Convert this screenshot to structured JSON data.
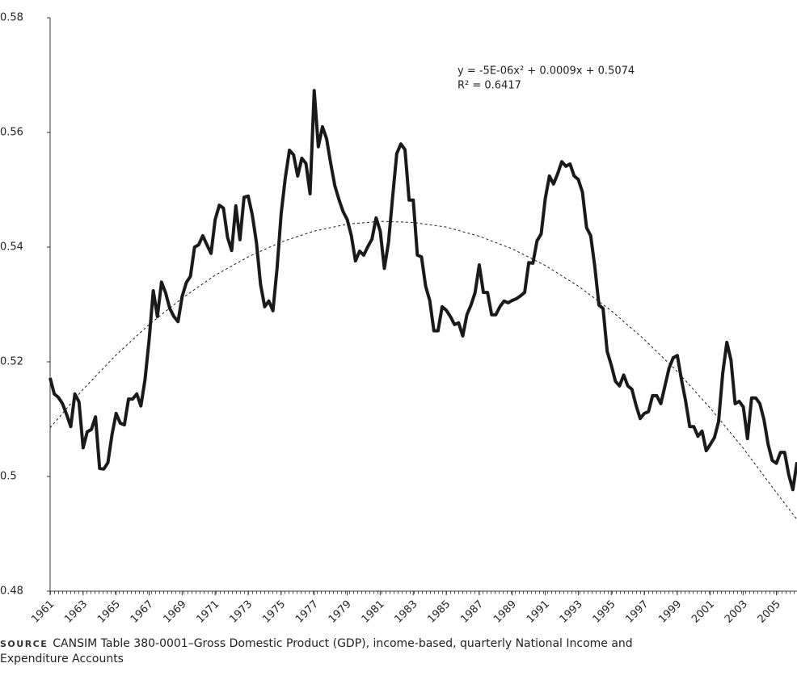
{
  "chart_data": {
    "type": "line",
    "annotations": [
      "y = -5E-06x² + 0.0009x + 0.5074",
      "R² = 0.6417"
    ],
    "source_label": "SOURCE",
    "source": "CANSIM Table 380-0001–Gross Domestic Product (GDP), income-based, quarterly National Income and Expenditure Accounts",
    "xlim": [
      1961,
      2006.25
    ],
    "xticks": [
      1961,
      1963,
      1965,
      1967,
      1969,
      1971,
      1973,
      1975,
      1977,
      1979,
      1981,
      1983,
      1985,
      1987,
      1989,
      1991,
      1993,
      1995,
      1997,
      1999,
      2001,
      2003,
      2005
    ],
    "ylim": [
      0.48,
      0.58
    ],
    "yticks": [
      0.48,
      0.5,
      0.52,
      0.54,
      0.56,
      0.58
    ],
    "series": [
      {
        "color": "#1a1a1a",
        "style": "solid",
        "x": [
          1961,
          1961.25,
          1961.5,
          1961.75,
          1962,
          1962.25,
          1962.5,
          1962.75,
          1963,
          1963.25,
          1963.5,
          1963.75,
          1964,
          1964.25,
          1964.5,
          1964.75,
          1965,
          1965.25,
          1965.5,
          1965.75,
          1966,
          1966.25,
          1966.5,
          1966.75,
          1967,
          1967.25,
          1967.5,
          1967.75,
          1968,
          1968.25,
          1968.5,
          1968.75,
          1969,
          1969.25,
          1969.5,
          1969.75,
          1970,
          1970.25,
          1970.5,
          1970.75,
          1971,
          1971.25,
          1971.5,
          1971.75,
          1972,
          1972.25,
          1972.5,
          1972.75,
          1973,
          1973.25,
          1973.5,
          1973.75,
          1974,
          1974.25,
          1974.5,
          1974.75,
          1975,
          1975.25,
          1975.5,
          1975.75,
          1976,
          1976.25,
          1976.5,
          1976.75,
          1977,
          1977.25,
          1977.5,
          1977.75,
          1978,
          1978.25,
          1978.5,
          1978.75,
          1979,
          1979.25,
          1979.5,
          1979.75,
          1980,
          1980.25,
          1980.5,
          1980.75,
          1981,
          1981.25,
          1981.5,
          1981.75,
          1982,
          1982.25,
          1982.5,
          1982.75,
          1983,
          1983.25,
          1983.5,
          1983.75,
          1984,
          1984.25,
          1984.5,
          1984.75,
          1985,
          1985.25,
          1985.5,
          1985.75,
          1986,
          1986.25,
          1986.5,
          1986.75,
          1987,
          1987.25,
          1987.5,
          1987.75,
          1988,
          1988.25,
          1988.5,
          1988.75,
          1989,
          1989.25,
          1989.5,
          1989.75,
          1990,
          1990.25,
          1990.5,
          1990.75,
          1991,
          1991.25,
          1991.5,
          1991.75,
          1992,
          1992.25,
          1992.5,
          1992.75,
          1993,
          1993.25,
          1993.5,
          1993.75,
          1994,
          1994.25,
          1994.5,
          1994.75,
          1995,
          1995.25,
          1995.5,
          1995.75,
          1996,
          1996.25,
          1996.5,
          1996.75,
          1997,
          1997.25,
          1997.5,
          1997.75,
          1998,
          1998.25,
          1998.5,
          1998.75,
          1999,
          1999.25,
          1999.5,
          1999.75,
          2000,
          2000.25,
          2000.5,
          2000.75,
          2001,
          2001.25,
          2001.5,
          2001.75,
          2002,
          2002.25,
          2002.5,
          2002.75,
          2003,
          2003.25,
          2003.5,
          2003.75,
          2004,
          2004.25,
          2004.5,
          2004.75,
          2005,
          2005.25,
          2005.5,
          2005.75,
          2006,
          2006.25
        ],
        "values": [
          0.5172,
          0.5144,
          0.5138,
          0.5127,
          0.5108,
          0.5087,
          0.5144,
          0.513,
          0.505,
          0.5078,
          0.5082,
          0.5104,
          0.5014,
          0.5013,
          0.5024,
          0.5073,
          0.511,
          0.5093,
          0.509,
          0.5135,
          0.5135,
          0.5144,
          0.5123,
          0.5169,
          0.5239,
          0.5324,
          0.5279,
          0.5339,
          0.532,
          0.5293,
          0.5279,
          0.527,
          0.5314,
          0.5338,
          0.5349,
          0.54,
          0.5404,
          0.542,
          0.5404,
          0.5389,
          0.5448,
          0.5473,
          0.5468,
          0.5417,
          0.5394,
          0.5472,
          0.5413,
          0.5487,
          0.5489,
          0.5456,
          0.5408,
          0.5335,
          0.5296,
          0.5306,
          0.5289,
          0.5363,
          0.5459,
          0.5521,
          0.5569,
          0.5561,
          0.5524,
          0.5555,
          0.5546,
          0.5493,
          0.5673,
          0.5575,
          0.561,
          0.5589,
          0.5546,
          0.5507,
          0.5483,
          0.5462,
          0.5448,
          0.542,
          0.5376,
          0.5393,
          0.5386,
          0.5401,
          0.5414,
          0.5451,
          0.5428,
          0.5363,
          0.5408,
          0.5487,
          0.5563,
          0.558,
          0.557,
          0.5482,
          0.5482,
          0.5386,
          0.5383,
          0.5332,
          0.5307,
          0.5254,
          0.5254,
          0.5296,
          0.529,
          0.5279,
          0.5265,
          0.5268,
          0.5245,
          0.5282,
          0.5299,
          0.5321,
          0.5369,
          0.5321,
          0.5321,
          0.5282,
          0.5282,
          0.5296,
          0.5306,
          0.5303,
          0.5307,
          0.531,
          0.5315,
          0.5321,
          0.5373,
          0.5372,
          0.5411,
          0.5423,
          0.5485,
          0.5524,
          0.551,
          0.5528,
          0.5549,
          0.5541,
          0.5545,
          0.5524,
          0.5518,
          0.5496,
          0.5434,
          0.542,
          0.5366,
          0.5299,
          0.5293,
          0.5218,
          0.5194,
          0.5166,
          0.5158,
          0.5177,
          0.5158,
          0.5152,
          0.5124,
          0.5101,
          0.511,
          0.5113,
          0.5141,
          0.5141,
          0.5127,
          0.5158,
          0.5189,
          0.5207,
          0.5211,
          0.5169,
          0.5132,
          0.5087,
          0.5087,
          0.507,
          0.5079,
          0.5045,
          0.5056,
          0.5068,
          0.5096,
          0.518,
          0.5234,
          0.5203,
          0.5127,
          0.5131,
          0.5121,
          0.5066,
          0.5137,
          0.5137,
          0.5127,
          0.5099,
          0.5056,
          0.5028,
          0.5023,
          0.5042,
          0.5042,
          0.5003,
          0.4977,
          0.5025
        ]
      },
      {
        "color": "#1a1a1a",
        "style": "dashed",
        "x": [
          1961,
          1963,
          1965,
          1967,
          1969,
          1971,
          1973,
          1975,
          1977,
          1979,
          1981,
          1983,
          1985,
          1987,
          1989,
          1991,
          1993,
          1995,
          1997,
          1999,
          2001,
          2003,
          2005,
          2006.25
        ],
        "values": [
          0.5085,
          0.5152,
          0.5212,
          0.5265,
          0.5311,
          0.5351,
          0.5383,
          0.5409,
          0.5428,
          0.544,
          0.5445,
          0.5443,
          0.5435,
          0.5419,
          0.5397,
          0.5368,
          0.5332,
          0.5289,
          0.5239,
          0.5183,
          0.5119,
          0.5049,
          0.4972,
          0.4925
        ]
      }
    ]
  }
}
